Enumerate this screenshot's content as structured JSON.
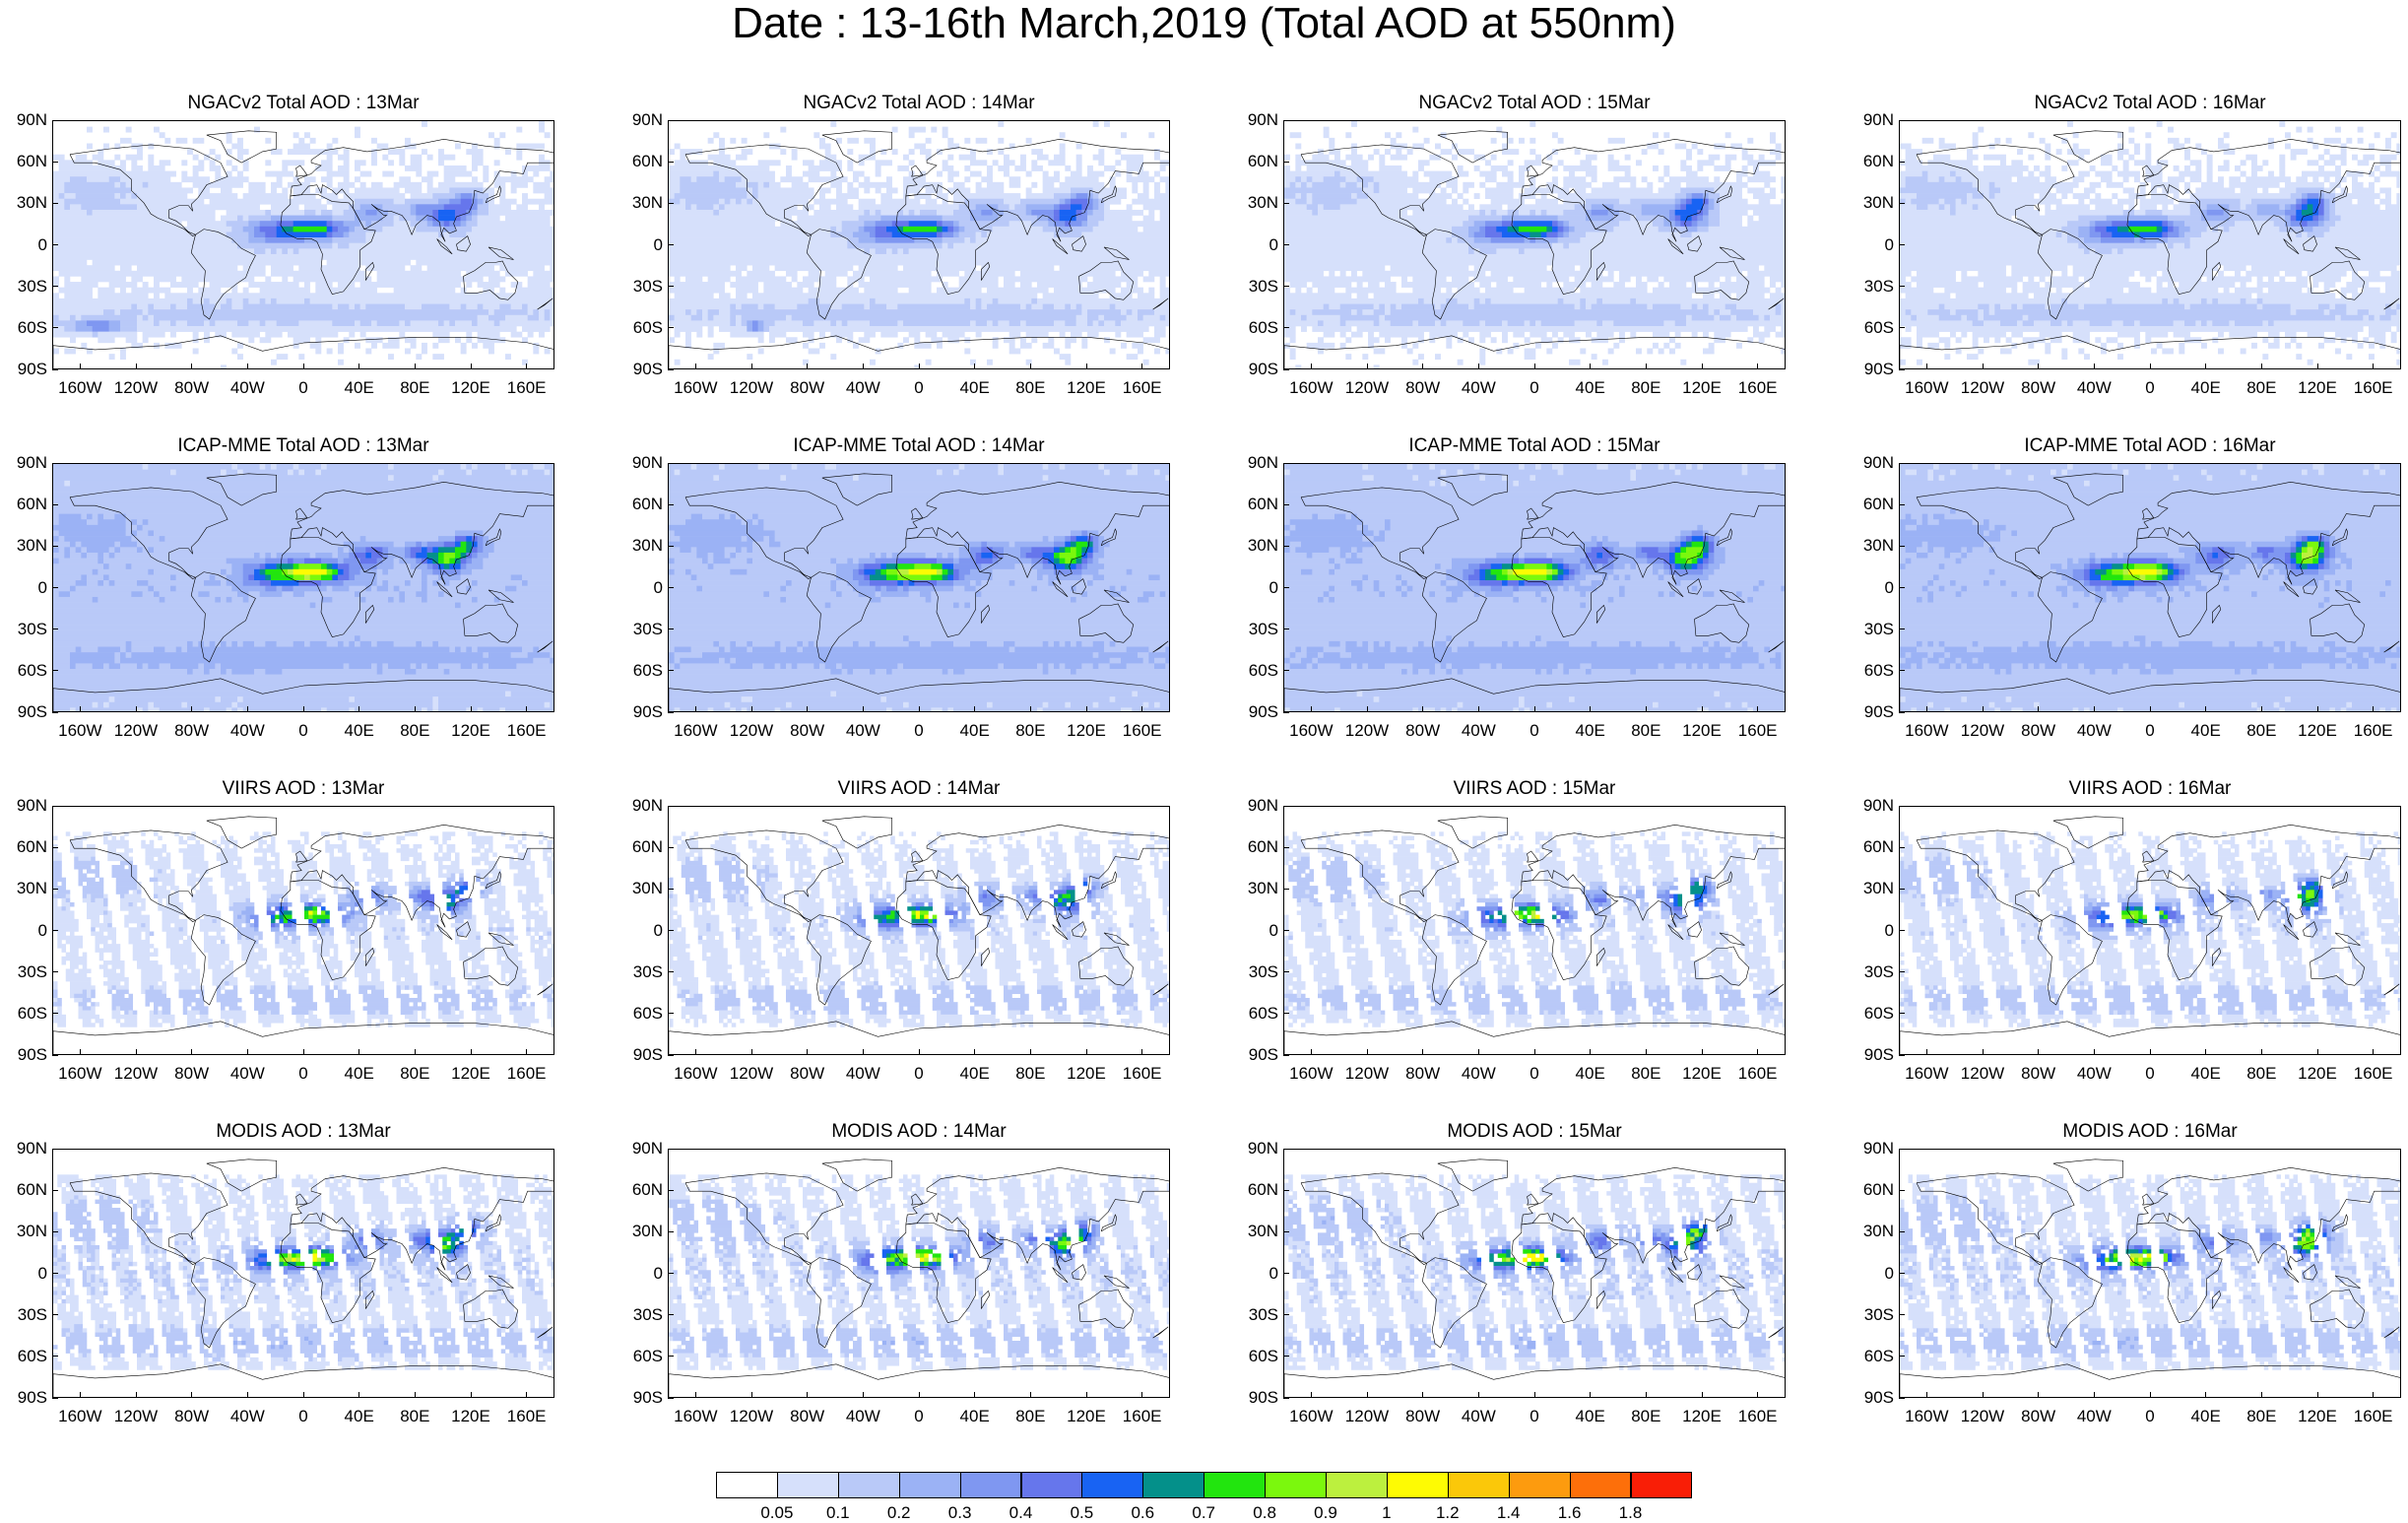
{
  "title": "Date : 13-16th March,2019 (Total AOD at 550nm)",
  "panels": [
    {
      "title": "NGACv2 Total AOD : 13Mar",
      "model": "ngac",
      "day": 0
    },
    {
      "title": "NGACv2 Total AOD : 14Mar",
      "model": "ngac",
      "day": 1
    },
    {
      "title": "NGACv2 Total AOD : 15Mar",
      "model": "ngac",
      "day": 2
    },
    {
      "title": "NGACv2 Total AOD : 16Mar",
      "model": "ngac",
      "day": 3
    },
    {
      "title": "ICAP-MME Total AOD : 13Mar",
      "model": "icap",
      "day": 0
    },
    {
      "title": "ICAP-MME Total AOD : 14Mar",
      "model": "icap",
      "day": 1
    },
    {
      "title": "ICAP-MME Total AOD : 15Mar",
      "model": "icap",
      "day": 2
    },
    {
      "title": "ICAP-MME Total AOD : 16Mar",
      "model": "icap",
      "day": 3
    },
    {
      "title": "VIIRS AOD : 13Mar",
      "model": "viirs",
      "day": 0
    },
    {
      "title": "VIIRS AOD : 14Mar",
      "model": "viirs",
      "day": 1
    },
    {
      "title": "VIIRS AOD : 15Mar",
      "model": "viirs",
      "day": 2
    },
    {
      "title": "VIIRS AOD : 16Mar",
      "model": "viirs",
      "day": 3
    },
    {
      "title": "MODIS AOD : 13Mar",
      "model": "modis",
      "day": 0
    },
    {
      "title": "MODIS AOD : 14Mar",
      "model": "modis",
      "day": 1
    },
    {
      "title": "MODIS AOD : 15Mar",
      "model": "modis",
      "day": 2
    },
    {
      "title": "MODIS AOD : 16Mar",
      "model": "modis",
      "day": 3
    }
  ],
  "lat_labels": [
    "90N",
    "60N",
    "30N",
    "0",
    "30S",
    "60S",
    "90S"
  ],
  "lon_labels": [
    "160W",
    "120W",
    "80W",
    "40W",
    "0",
    "40E",
    "80E",
    "120E",
    "160E"
  ],
  "colorbar": {
    "colors": [
      "#ffffff",
      "#d6e0fb",
      "#b9c9f8",
      "#9bb2f5",
      "#7f97f1",
      "#6676ec",
      "#1863f3",
      "#04908a",
      "#22e50e",
      "#7bf80d",
      "#bcf03e",
      "#fefb03",
      "#fbc809",
      "#fd9b0e",
      "#fd6f0a",
      "#f91e06"
    ],
    "labels": [
      "0.05",
      "0.1",
      "0.2",
      "0.3",
      "0.4",
      "0.5",
      "0.6",
      "0.7",
      "0.8",
      "0.9",
      "1",
      "1.2",
      "1.4",
      "1.6",
      "1.8"
    ]
  }
}
